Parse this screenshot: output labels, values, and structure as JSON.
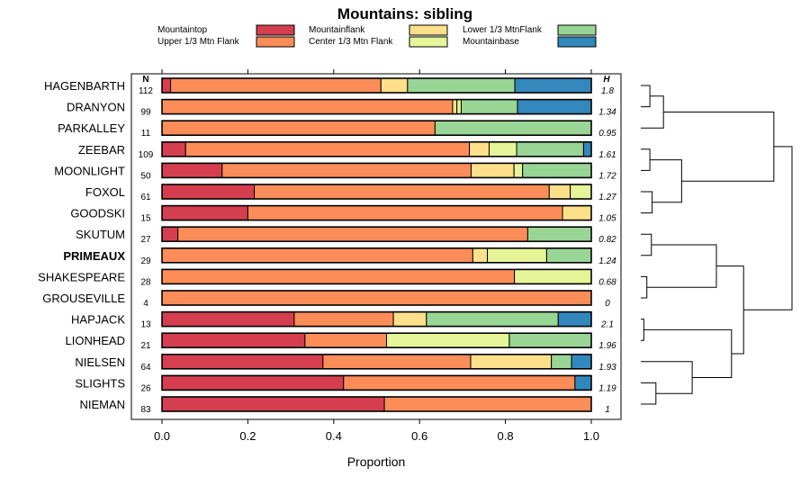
{
  "chart_data": {
    "type": "bar",
    "stacked": true,
    "orientation": "horizontal",
    "title": "Mountains: sibling",
    "xlabel": "Proportion",
    "xlim": [
      0,
      1
    ],
    "xticks": [
      "0.0",
      "0.2",
      "0.4",
      "0.6",
      "0.8",
      "1.0"
    ],
    "n_header": "N",
    "h_header": "H",
    "categories": [
      "HAGENBARTH",
      "DRANYON",
      "PARKALLEY",
      "ZEEBAR",
      "MOONLIGHT",
      "FOXOL",
      "GOODSKI",
      "SKUTUM",
      "PRIMEAUX",
      "SHAKESPEARE",
      "GROUSEVILLE",
      "HAPJACK",
      "LIONHEAD",
      "NIELSEN",
      "SLIGHTS",
      "NIEMAN"
    ],
    "highlight": "PRIMEAUX",
    "n": [
      "112",
      "99",
      "11",
      "109",
      "50",
      "61",
      "15",
      "27",
      "29",
      "28",
      "4",
      "13",
      "21",
      "64",
      "26",
      "83"
    ],
    "h": [
      "1.8",
      "1.34",
      "0.95",
      "1.61",
      "1.72",
      "1.27",
      "1.05",
      "0.82",
      "1.24",
      "0.68",
      "0",
      "2.1",
      "1.96",
      "1.93",
      "1.19",
      "1"
    ],
    "series": [
      {
        "name": "Mountaintop",
        "color": "#d53e4f",
        "values": [
          0.02,
          0.0,
          0.0,
          0.055,
          0.14,
          0.215,
          0.2,
          0.037,
          0.0,
          0.0,
          0.0,
          0.308,
          0.333,
          0.375,
          0.423,
          0.518
        ]
      },
      {
        "name": "Upper 1/3 Mtn Flank",
        "color": "#fc8d59",
        "values": [
          0.49,
          0.677,
          0.636,
          0.661,
          0.58,
          0.687,
          0.733,
          0.815,
          0.724,
          0.821,
          1.0,
          0.231,
          0.19,
          0.344,
          0.539,
          0.482
        ]
      },
      {
        "name": "Mountainflank",
        "color": "#fee08b",
        "values": [
          0.062,
          0.01,
          0.0,
          0.046,
          0.1,
          0.049,
          0.067,
          0.0,
          0.034,
          0.0,
          0.0,
          0.077,
          0.0,
          0.188,
          0.0,
          0.0
        ]
      },
      {
        "name": "Center 1/3 Mtn Flank",
        "color": "#e6f598",
        "values": [
          0.0,
          0.01,
          0.0,
          0.064,
          0.02,
          0.049,
          0.0,
          0.0,
          0.138,
          0.179,
          0.0,
          0.0,
          0.286,
          0.0,
          0.0,
          0.0
        ]
      },
      {
        "name": "Lower 1/3 MtnFlank",
        "color": "#99d594",
        "values": [
          0.25,
          0.131,
          0.364,
          0.156,
          0.16,
          0.0,
          0.0,
          0.148,
          0.104,
          0.0,
          0.0,
          0.307,
          0.191,
          0.047,
          0.0,
          0.0
        ]
      },
      {
        "name": "Mountainbase",
        "color": "#3288bd",
        "values": [
          0.178,
          0.172,
          0.0,
          0.018,
          0.0,
          0.0,
          0.0,
          0.0,
          0.0,
          0.0,
          0.0,
          0.077,
          0.0,
          0.046,
          0.038,
          0.0
        ]
      }
    ],
    "legend_order": [
      "Mountaintop",
      "Upper 1/3 Mtn Flank",
      "Mountainflank",
      "Center 1/3 Mtn Flank",
      "Lower 1/3 MtnFlank",
      "Mountainbase"
    ],
    "legend_position": "top",
    "dendrogram": {
      "side": "right",
      "merges": [
        [
          "HAGENBARTH",
          "DRANYON",
          0.06
        ],
        [
          "ZEEBAR",
          "MOONLIGHT",
          0.06
        ],
        [
          "FOXOL",
          "GOODSKI",
          0.075
        ],
        [
          "SHAKESPEARE",
          "GROUSEVILLE",
          0.04
        ],
        [
          "SLIGHTS",
          "NIEMAN",
          0.1
        ],
        [
          "SKUTUM",
          "PRIMEAUX",
          0.07
        ],
        [
          "HAPJACK",
          "LIONHEAD",
          0.02
        ],
        [
          "HAGENBARTH+DRANYON",
          "PARKALLEY",
          0.15
        ],
        [
          "ZEEBAR+MOONLIGHT",
          "FOXOL+GOODSKI",
          0.27
        ],
        [
          "SKUTUM+PRIMEAUX",
          "SHAKESPEARE+GROUSEVILLE",
          0.5
        ],
        [
          "NIELSEN",
          "SLIGHTS+NIEMAN",
          0.34
        ],
        [
          "HAPJACK+LIONHEAD",
          "NIELSEN+SLIGHTS+NIEMAN",
          0.6
        ],
        [
          "HAGENBARTH+DRANYON+PARKALLEY",
          "ZEEBAR+MOONLIGHT+FOXOL+GOODSKI",
          0.88
        ],
        [
          "SKUTUM+PRIMEAUX+SHAKESPEARE+GROUSEVILLE",
          "HAPJACK+LIONHEAD+NIELSEN+SLIGHTS+NIEMAN",
          0.68
        ],
        [
          "HAGENBARTH+DRANYON+PARKALLEY+ZEEBAR+MOONLIGHT+FOXOL+GOODSKI",
          "SKUTUM+PRIMEAUX+SHAKESPEARE+GROUSEVILLE+HAPJACK+LIONHEAD+NIELSEN+SLIGHTS+NIEMAN",
          1.0
        ]
      ]
    }
  }
}
